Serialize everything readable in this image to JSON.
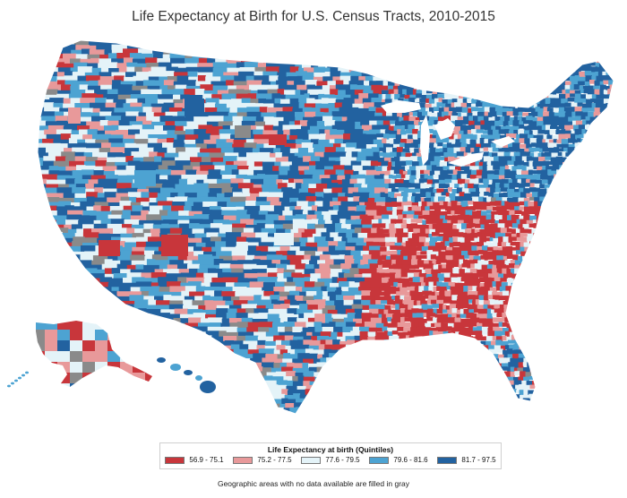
{
  "title": "Life Expectancy at Birth for U.S. Census Tracts, 2010-2015",
  "legend": {
    "title": "Life Expectancy at birth (Quintiles)",
    "items": [
      {
        "label": "56.9 - 75.1",
        "color": "#c8363b"
      },
      {
        "label": "75.2 - 77.5",
        "color": "#e8999a"
      },
      {
        "label": "77.6 - 79.5",
        "color": "#e4f3f8"
      },
      {
        "label": "79.6 - 81.6",
        "color": "#4da3d2"
      },
      {
        "label": "81.7 - 97.5",
        "color": "#2262a0"
      }
    ]
  },
  "no_data_color": "#8a8a8a",
  "note": "Geographic areas with no data available are filled in gray"
}
